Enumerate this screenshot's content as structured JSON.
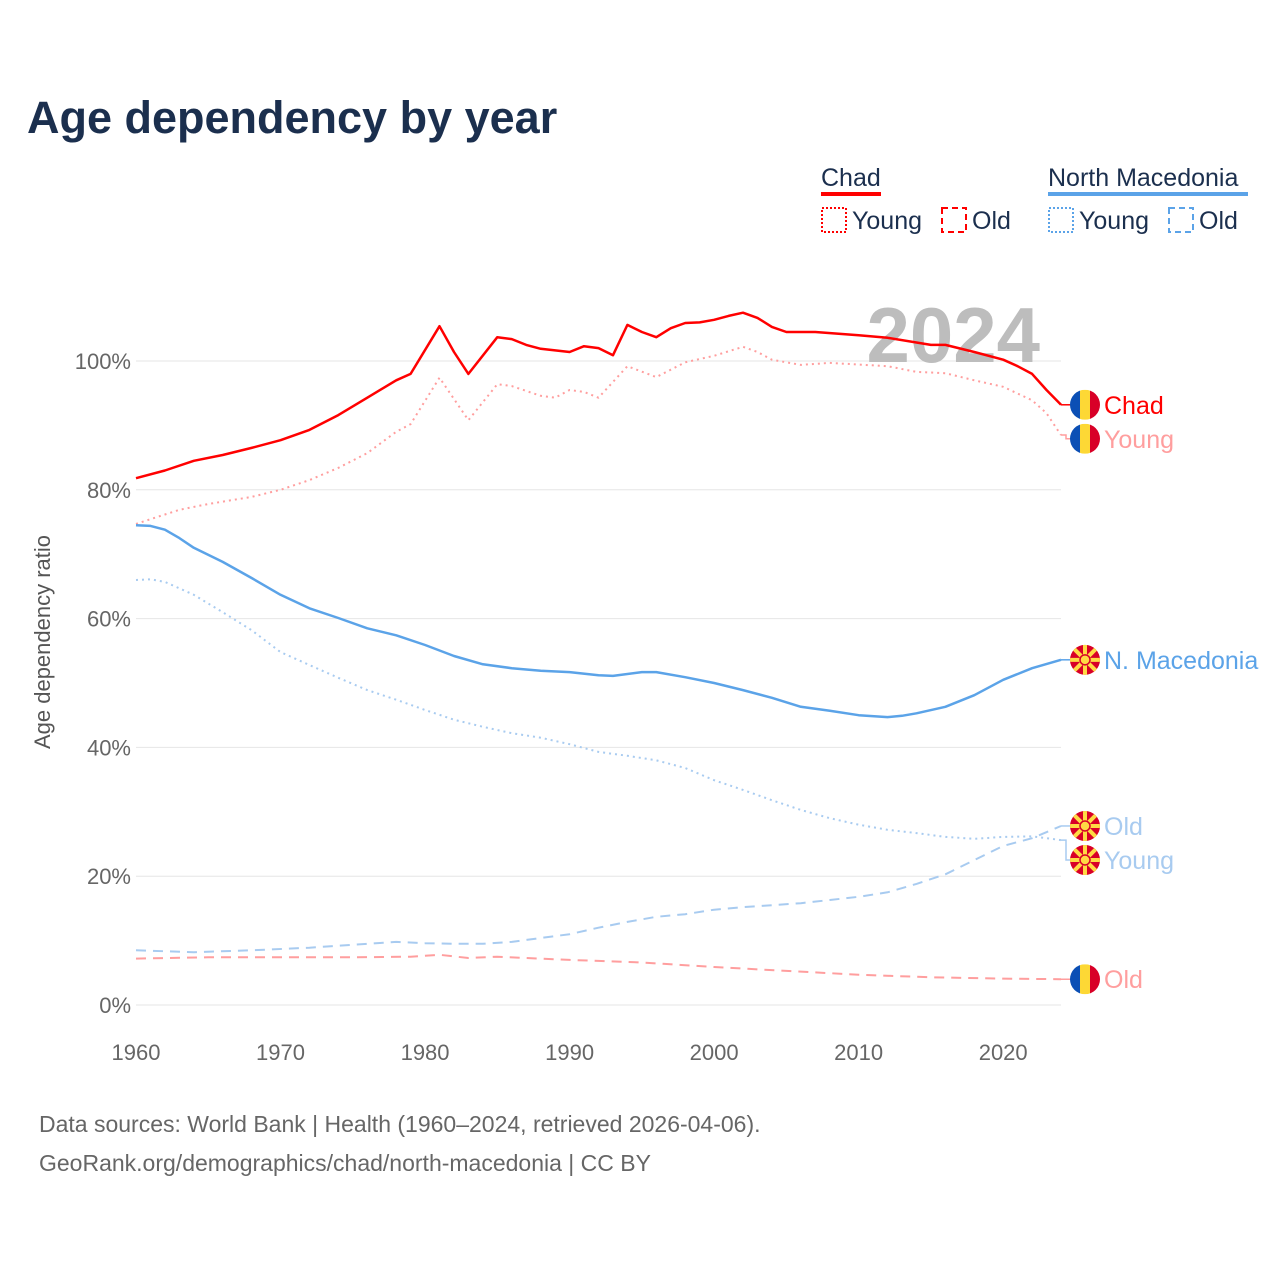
{
  "chart_data": {
    "type": "line",
    "title": "Age dependency by year",
    "ylabel": "Age dependency ratio",
    "xlabel": "",
    "xlim": [
      1960,
      2024
    ],
    "ylim": [
      0,
      100
    ],
    "x_ticks": [
      1960,
      1970,
      1980,
      1990,
      2000,
      2010,
      2020
    ],
    "y_ticks": [
      0,
      20,
      40,
      60,
      80,
      100
    ],
    "y_tick_labels": [
      "0%",
      "20%",
      "40%",
      "60%",
      "80%",
      "100%"
    ],
    "grid": true,
    "year_watermark": "2024",
    "legend": {
      "placement": "top-right",
      "groups": [
        {
          "country": "Chad",
          "items": [
            "Young",
            "Old"
          ]
        },
        {
          "country": "North Macedonia",
          "items": [
            "Young",
            "Old"
          ]
        }
      ]
    },
    "colors": {
      "chad": "#ff0000",
      "chad_light": "#ff9e9e",
      "nm": "#5ba3e8",
      "nm_light": "#a8cbf0"
    },
    "series": [
      {
        "name": "Chad",
        "style": "solid",
        "color_key": "chad",
        "end_label": "Chad",
        "flag": "chad",
        "points": [
          [
            1960,
            81.8
          ],
          [
            1962,
            83
          ],
          [
            1964,
            84.5
          ],
          [
            1966,
            85.4
          ],
          [
            1968,
            86.5
          ],
          [
            1970,
            87.7
          ],
          [
            1972,
            89.3
          ],
          [
            1974,
            91.6
          ],
          [
            1976,
            94.3
          ],
          [
            1978,
            97
          ],
          [
            1979,
            98
          ],
          [
            1981,
            105.4
          ],
          [
            1982,
            101.4
          ],
          [
            1983,
            98
          ],
          [
            1985,
            103.7
          ],
          [
            1986,
            103.4
          ],
          [
            1987,
            102.5
          ],
          [
            1988,
            101.9
          ],
          [
            1990,
            101.4
          ],
          [
            1991,
            102.3
          ],
          [
            1992,
            102
          ],
          [
            1993,
            100.9
          ],
          [
            1994,
            105.6
          ],
          [
            1995,
            104.5
          ],
          [
            1996,
            103.7
          ],
          [
            1997,
            105.1
          ],
          [
            1998,
            105.9
          ],
          [
            1999,
            106
          ],
          [
            2000,
            106.4
          ],
          [
            2001,
            107
          ],
          [
            2002,
            107.5
          ],
          [
            2003,
            106.7
          ],
          [
            2004,
            105.3
          ],
          [
            2005,
            104.5
          ],
          [
            2007,
            104.5
          ],
          [
            2010,
            104
          ],
          [
            2012,
            103.6
          ],
          [
            2015,
            102.5
          ],
          [
            2016,
            102.5
          ],
          [
            2018,
            101.4
          ],
          [
            2020,
            100.2
          ],
          [
            2021,
            99.2
          ],
          [
            2022,
            98
          ],
          [
            2023,
            95.5
          ],
          [
            2024,
            93.2
          ]
        ]
      },
      {
        "name": "Chad Young",
        "style": "dotted",
        "color_key": "chad_light",
        "end_label": "Young",
        "flag": "chad",
        "points": [
          [
            1960,
            74.7
          ],
          [
            1963,
            76.9
          ],
          [
            1965,
            77.8
          ],
          [
            1968,
            78.9
          ],
          [
            1970,
            80
          ],
          [
            1972,
            81.5
          ],
          [
            1974,
            83.4
          ],
          [
            1976,
            85.7
          ],
          [
            1978,
            89
          ],
          [
            1979,
            90.2
          ],
          [
            1981,
            97.4
          ],
          [
            1983,
            90.8
          ],
          [
            1985,
            96.4
          ],
          [
            1986,
            96.1
          ],
          [
            1988,
            94.6
          ],
          [
            1989,
            94.3
          ],
          [
            1990,
            95.5
          ],
          [
            1991,
            95.2
          ],
          [
            1992,
            94.3
          ],
          [
            1994,
            99.2
          ],
          [
            1996,
            97.5
          ],
          [
            1998,
            99.8
          ],
          [
            2000,
            100.8
          ],
          [
            2002,
            102.2
          ],
          [
            2003,
            101.4
          ],
          [
            2004,
            100.2
          ],
          [
            2006,
            99.4
          ],
          [
            2008,
            99.7
          ],
          [
            2012,
            99.2
          ],
          [
            2014,
            98.3
          ],
          [
            2016,
            98.1
          ],
          [
            2018,
            97
          ],
          [
            2020,
            96
          ],
          [
            2022,
            93.9
          ],
          [
            2023,
            91.9
          ],
          [
            2024,
            88.5
          ]
        ]
      },
      {
        "name": "Chad Old",
        "style": "dashed",
        "color_key": "chad_light",
        "end_label": "Old",
        "flag": "chad",
        "points": [
          [
            1960,
            7.2
          ],
          [
            1965,
            7.4
          ],
          [
            1970,
            7.4
          ],
          [
            1975,
            7.4
          ],
          [
            1979,
            7.5
          ],
          [
            1981,
            7.8
          ],
          [
            1983,
            7.3
          ],
          [
            1985,
            7.5
          ],
          [
            1990,
            7
          ],
          [
            1995,
            6.6
          ],
          [
            2000,
            5.9
          ],
          [
            2005,
            5.3
          ],
          [
            2010,
            4.7
          ],
          [
            2015,
            4.3
          ],
          [
            2020,
            4.1
          ],
          [
            2024,
            4.0
          ]
        ]
      },
      {
        "name": "North Macedonia",
        "style": "solid",
        "color_key": "nm",
        "end_label": "N. Macedonia",
        "flag": "nm",
        "points": [
          [
            1960,
            74.5
          ],
          [
            1961,
            74.4
          ],
          [
            1962,
            73.8
          ],
          [
            1963,
            72.5
          ],
          [
            1964,
            71
          ],
          [
            1966,
            68.8
          ],
          [
            1968,
            66.3
          ],
          [
            1970,
            63.7
          ],
          [
            1972,
            61.6
          ],
          [
            1974,
            60.1
          ],
          [
            1976,
            58.5
          ],
          [
            1978,
            57.4
          ],
          [
            1980,
            55.9
          ],
          [
            1982,
            54.2
          ],
          [
            1984,
            52.9
          ],
          [
            1986,
            52.3
          ],
          [
            1988,
            51.9
          ],
          [
            1990,
            51.7
          ],
          [
            1992,
            51.2
          ],
          [
            1993,
            51.1
          ],
          [
            1995,
            51.7
          ],
          [
            1996,
            51.7
          ],
          [
            1998,
            50.9
          ],
          [
            2000,
            50
          ],
          [
            2002,
            48.9
          ],
          [
            2004,
            47.7
          ],
          [
            2006,
            46.3
          ],
          [
            2008,
            45.7
          ],
          [
            2010,
            45
          ],
          [
            2012,
            44.7
          ],
          [
            2013,
            44.9
          ],
          [
            2014,
            45.3
          ],
          [
            2016,
            46.3
          ],
          [
            2018,
            48.1
          ],
          [
            2020,
            50.5
          ],
          [
            2022,
            52.3
          ],
          [
            2024,
            53.6
          ]
        ]
      },
      {
        "name": "North Macedonia Old",
        "style": "dashed",
        "color_key": "nm_light",
        "end_label": "Old",
        "flag": "nm",
        "points": [
          [
            1960,
            8.5
          ],
          [
            1964,
            8.2
          ],
          [
            1968,
            8.5
          ],
          [
            1972,
            8.9
          ],
          [
            1976,
            9.5
          ],
          [
            1978,
            9.8
          ],
          [
            1980,
            9.6
          ],
          [
            1982,
            9.5
          ],
          [
            1984,
            9.5
          ],
          [
            1986,
            9.8
          ],
          [
            1988,
            10.4
          ],
          [
            1990,
            11
          ],
          [
            1992,
            12
          ],
          [
            1994,
            12.9
          ],
          [
            1996,
            13.7
          ],
          [
            1998,
            14.1
          ],
          [
            2000,
            14.8
          ],
          [
            2002,
            15.2
          ],
          [
            2004,
            15.5
          ],
          [
            2006,
            15.8
          ],
          [
            2008,
            16.3
          ],
          [
            2010,
            16.8
          ],
          [
            2012,
            17.5
          ],
          [
            2014,
            18.8
          ],
          [
            2016,
            20.3
          ],
          [
            2018,
            22.5
          ],
          [
            2020,
            24.7
          ],
          [
            2022,
            25.9
          ],
          [
            2024,
            27.8
          ]
        ]
      },
      {
        "name": "North Macedonia Young",
        "style": "dotted",
        "color_key": "nm_light",
        "end_label": "Young",
        "flag": "nm",
        "points": [
          [
            1960,
            66
          ],
          [
            1961,
            66.1
          ],
          [
            1962,
            65.7
          ],
          [
            1964,
            63.7
          ],
          [
            1966,
            61
          ],
          [
            1968,
            58.2
          ],
          [
            1970,
            54.8
          ],
          [
            1972,
            52.8
          ],
          [
            1974,
            50.8
          ],
          [
            1976,
            48.9
          ],
          [
            1978,
            47.4
          ],
          [
            1980,
            45.8
          ],
          [
            1982,
            44.3
          ],
          [
            1984,
            43.2
          ],
          [
            1986,
            42.2
          ],
          [
            1988,
            41.5
          ],
          [
            1990,
            40.5
          ],
          [
            1992,
            39.3
          ],
          [
            1994,
            38.7
          ],
          [
            1996,
            38
          ],
          [
            1998,
            36.8
          ],
          [
            2000,
            34.9
          ],
          [
            2002,
            33.4
          ],
          [
            2004,
            31.8
          ],
          [
            2006,
            30.3
          ],
          [
            2008,
            29
          ],
          [
            2010,
            28
          ],
          [
            2012,
            27.2
          ],
          [
            2014,
            26.7
          ],
          [
            2016,
            26.1
          ],
          [
            2018,
            25.8
          ],
          [
            2020,
            26.1
          ],
          [
            2022,
            26.2
          ],
          [
            2024,
            25.6
          ]
        ]
      }
    ]
  },
  "footer": {
    "line1": "Data sources: World Bank | Health (1960–2024, retrieved 2026-04-06).",
    "line2": "GeoRank.org/demographics/chad/north-macedonia | CC BY"
  }
}
